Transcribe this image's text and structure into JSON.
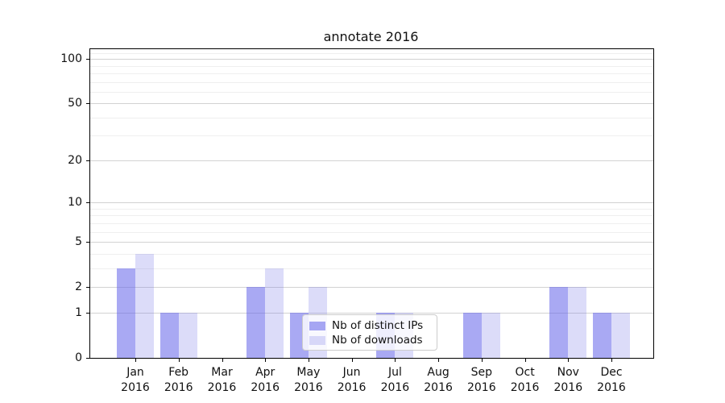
{
  "chart_data": {
    "type": "bar",
    "title": "annotate 2016",
    "categories": [
      {
        "month": "Jan",
        "year": "2016"
      },
      {
        "month": "Feb",
        "year": "2016"
      },
      {
        "month": "Mar",
        "year": "2016"
      },
      {
        "month": "Apr",
        "year": "2016"
      },
      {
        "month": "May",
        "year": "2016"
      },
      {
        "month": "Jun",
        "year": "2016"
      },
      {
        "month": "Jul",
        "year": "2016"
      },
      {
        "month": "Aug",
        "year": "2016"
      },
      {
        "month": "Sep",
        "year": "2016"
      },
      {
        "month": "Oct",
        "year": "2016"
      },
      {
        "month": "Nov",
        "year": "2016"
      },
      {
        "month": "Dec",
        "year": "2016"
      }
    ],
    "series": [
      {
        "name": "Nb of distinct IPs",
        "color": "rgba(99,99,233,0.55)",
        "color_hex_on_white": "#a9a9f3",
        "values": [
          3,
          1,
          0,
          2,
          1,
          0,
          1,
          0,
          1,
          0,
          2,
          1
        ]
      },
      {
        "name": "Nb of downloads",
        "color": "rgba(115,115,231,0.25)",
        "color_hex_on_white": "#dcdcf9",
        "values": [
          4,
          1,
          0,
          3,
          2,
          0,
          1,
          0,
          1,
          0,
          2,
          1
        ]
      }
    ],
    "xlabel": "",
    "ylabel": "",
    "scale": "log1p",
    "ylim": [
      0,
      116.5
    ],
    "yticks_major": [
      0,
      1,
      2,
      5,
      10,
      20,
      50,
      100
    ],
    "yticks_minor": [
      3,
      4,
      6,
      7,
      8,
      9,
      30,
      40,
      60,
      70,
      80,
      90,
      110
    ],
    "grid": true,
    "legend_position": "inside-lower-center"
  },
  "colors": {
    "grid_major": "#d2d2d2",
    "grid_minor": "#efefef",
    "spine": "#000000",
    "text": "#111111",
    "legend_border": "#cccccc"
  }
}
